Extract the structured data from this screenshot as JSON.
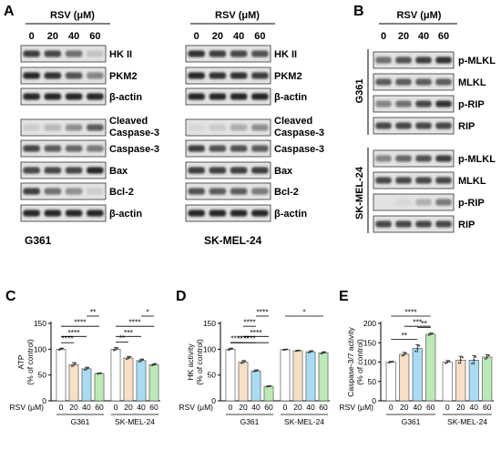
{
  "panels": {
    "A": {
      "letter": "A",
      "treatment_header": "RSV (μM)",
      "doses": [
        "0",
        "20",
        "40",
        "60"
      ],
      "cell_lines": [
        "G361",
        "SK-MEL-24"
      ],
      "blot_groups": [
        [
          "HK II",
          "PKM2",
          "β-actin"
        ],
        [
          "Cleaved Caspase-3",
          "Caspase-3",
          "Bax",
          "Bcl-2",
          "β-actin"
        ]
      ],
      "intensity_cues": {
        "G361": {
          "HK II": [
            0.85,
            0.8,
            0.6,
            0.2
          ],
          "PKM2": [
            0.95,
            0.9,
            0.75,
            0.5
          ],
          "β-actin#1": [
            0.95,
            0.95,
            0.95,
            0.95
          ],
          "Cleaved Caspase-3": [
            0.15,
            0.25,
            0.45,
            0.7
          ],
          "Caspase-3": [
            0.8,
            0.7,
            0.65,
            0.55
          ],
          "Bax": [
            0.8,
            0.8,
            0.8,
            0.95
          ],
          "Bcl-2": [
            0.85,
            0.6,
            0.45,
            0.15
          ],
          "β-actin#2": [
            0.95,
            0.95,
            0.95,
            0.95
          ]
        },
        "SK-MEL-24": {
          "HK II": [
            0.9,
            0.85,
            0.8,
            0.75
          ],
          "PKM2": [
            0.95,
            0.9,
            0.9,
            0.85
          ],
          "β-actin#1": [
            0.95,
            0.95,
            0.95,
            0.95
          ],
          "Cleaved Caspase-3": [
            0.1,
            0.15,
            0.3,
            0.45
          ],
          "Caspase-3": [
            0.85,
            0.75,
            0.75,
            0.7
          ],
          "Bax": [
            0.85,
            0.85,
            0.85,
            0.85
          ],
          "Bcl-2": [
            0.75,
            0.7,
            0.7,
            0.55
          ],
          "β-actin#2": [
            0.95,
            0.95,
            0.95,
            0.95
          ]
        }
      }
    },
    "B": {
      "letter": "B",
      "treatment_header": "RSV (μM)",
      "doses": [
        "0",
        "20",
        "40",
        "60"
      ],
      "cell_lines": [
        "G361",
        "SK-MEL-24"
      ],
      "proteins": [
        "p-MLKL",
        "MLKL",
        "p-RIP",
        "RIP"
      ],
      "intensity_cues": {
        "G361": {
          "p-MLKL": [
            0.6,
            0.75,
            0.85,
            0.9
          ],
          "MLKL": [
            0.7,
            0.7,
            0.7,
            0.7
          ],
          "p-RIP": [
            0.5,
            0.6,
            0.8,
            0.9
          ],
          "RIP": [
            0.8,
            0.8,
            0.8,
            0.8
          ]
        },
        "SK-MEL-24": {
          "p-MLKL": [
            0.5,
            0.65,
            0.75,
            0.85
          ],
          "MLKL": [
            0.8,
            0.8,
            0.8,
            0.8
          ],
          "p-RIP": [
            0.05,
            0.1,
            0.3,
            0.55
          ],
          "RIP": [
            0.8,
            0.8,
            0.8,
            0.8
          ]
        }
      }
    },
    "C": {
      "letter": "C"
    },
    "D": {
      "letter": "D"
    },
    "E": {
      "letter": "E"
    }
  },
  "chart_data": [
    {
      "panel": "C",
      "type": "bar",
      "ylabel": "ATP\n(% of control)",
      "xlabel": "RSV (μM)",
      "groups": [
        "G361",
        "SK-MEL-24"
      ],
      "categories": [
        "0",
        "20",
        "40",
        "60"
      ],
      "ylim": [
        0,
        150
      ],
      "yticks": [
        0,
        50,
        100,
        150
      ],
      "series": [
        {
          "values": [
            100,
            70,
            62,
            53
          ],
          "errors": [
            2,
            4,
            3,
            1
          ]
        },
        {
          "values": [
            100,
            83,
            78,
            70
          ],
          "errors": [
            3,
            3,
            3,
            2
          ]
        }
      ],
      "bar_colors": [
        "#ffffff",
        "#f8dfc8",
        "#a9dcf3",
        "#bde8b8"
      ],
      "significance": [
        {
          "group": 0,
          "from": 0,
          "to": 1,
          "label": "****"
        },
        {
          "group": 0,
          "from": 0,
          "to": 2,
          "label": "****"
        },
        {
          "group": 0,
          "from": 0,
          "to": 3,
          "label": "****"
        },
        {
          "group": 0,
          "from": 2,
          "to": 3,
          "label": "**"
        },
        {
          "group": 1,
          "from": 0,
          "to": 1,
          "label": "**"
        },
        {
          "group": 1,
          "from": 0,
          "to": 2,
          "label": "***"
        },
        {
          "group": 1,
          "from": 0,
          "to": 3,
          "label": "****"
        },
        {
          "group": 1,
          "from": 2,
          "to": 3,
          "label": "*"
        }
      ]
    },
    {
      "panel": "D",
      "type": "bar",
      "ylabel": "HK activity\n(% of control)",
      "xlabel": "RSV (μM)",
      "groups": [
        "G361",
        "SK-MEL-24"
      ],
      "categories": [
        "0",
        "20",
        "40",
        "60"
      ],
      "ylim": [
        0,
        150
      ],
      "yticks": [
        0,
        50,
        100,
        150
      ],
      "series": [
        {
          "values": [
            100,
            75,
            58,
            28
          ],
          "errors": [
            2,
            3,
            2,
            1
          ]
        },
        {
          "values": [
            99,
            97,
            95,
            93
          ],
          "errors": [
            1,
            1,
            2,
            2
          ]
        }
      ],
      "bar_colors": [
        "#ffffff",
        "#f8dfc8",
        "#a9dcf3",
        "#bde8b8"
      ],
      "significance": [
        {
          "group": 0,
          "from": 0,
          "to": 1,
          "label": "****"
        },
        {
          "group": 0,
          "from": 0,
          "to": 2,
          "label": "****"
        },
        {
          "group": 0,
          "from": 0,
          "to": 3,
          "label": "****"
        },
        {
          "group": 0,
          "from": 1,
          "to": 3,
          "label": "****"
        },
        {
          "group": 0,
          "from": 1,
          "to": 2,
          "label": "****"
        },
        {
          "group": 0,
          "from": 2,
          "to": 3,
          "label": "****"
        },
        {
          "group": 1,
          "from": 0,
          "to": 3,
          "label": "*"
        }
      ]
    },
    {
      "panel": "E",
      "type": "bar",
      "ylabel": "Caspase-3/7 activity\n(% of control)",
      "xlabel": "RSV (μM)",
      "groups": [
        "G361",
        "SK-MEL-24"
      ],
      "categories": [
        "0",
        "20",
        "40",
        "60"
      ],
      "ylim": [
        0,
        200
      ],
      "yticks": [
        0,
        50,
        100,
        150,
        200
      ],
      "series": [
        {
          "values": [
            100,
            120,
            135,
            172
          ],
          "errors": [
            2,
            5,
            10,
            3
          ]
        },
        {
          "values": [
            100,
            105,
            105,
            113
          ],
          "errors": [
            4,
            10,
            12,
            6
          ]
        }
      ],
      "bar_colors": [
        "#ffffff",
        "#f8dfc8",
        "#a9dcf3",
        "#bde8b8"
      ],
      "significance": [
        {
          "group": 0,
          "from": 0,
          "to": 2,
          "label": "**"
        },
        {
          "group": 0,
          "from": 2,
          "to": 3,
          "label": "**"
        },
        {
          "group": 0,
          "from": 1,
          "to": 3,
          "label": "***"
        },
        {
          "group": 0,
          "from": 0,
          "to": 3,
          "label": "****"
        }
      ]
    }
  ]
}
